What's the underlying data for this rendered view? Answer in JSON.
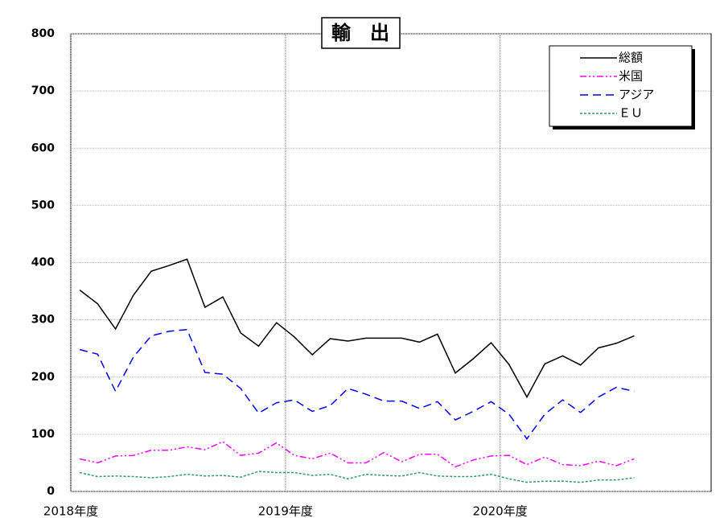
{
  "chart_data": {
    "type": "line",
    "title": "輸　出",
    "x": [
      0.5,
      1.5,
      2.5,
      3.5,
      4.5,
      5.5,
      6.5,
      7.5,
      8.5,
      9.5,
      10.5,
      11.5,
      12.5,
      13.5,
      14.5,
      15.5,
      16.5,
      17.5,
      18.5,
      19.5,
      20.5,
      21.5,
      22.5,
      23.5,
      24.5,
      25.5,
      26.5,
      27.5,
      28.5,
      29.5,
      30.5,
      31.5
    ],
    "xlim": [
      0,
      35.8
    ],
    "xticks": [
      {
        "value": 0,
        "label": "2018年度"
      },
      {
        "value": 12,
        "label": "2019年度"
      },
      {
        "value": 24,
        "label": "2020年度"
      }
    ],
    "ylim": [
      0,
      800
    ],
    "yticks": [
      0,
      100,
      200,
      300,
      400,
      500,
      600,
      700,
      800
    ],
    "grid": true,
    "legend": "top-right",
    "series": [
      {
        "name": "総額",
        "color": "#000000",
        "dash": "solid",
        "values": [
          352,
          328,
          284,
          343,
          385,
          395,
          406,
          322,
          340,
          277,
          254,
          295,
          270,
          239,
          267,
          263,
          268,
          268,
          268,
          261,
          275,
          207,
          232,
          260,
          222,
          165,
          223,
          237,
          221,
          251,
          259,
          272
        ]
      },
      {
        "name": "米国",
        "color": "#ff00ff",
        "dash": "dashdotdot",
        "values": [
          57,
          50,
          62,
          63,
          72,
          72,
          78,
          73,
          87,
          63,
          67,
          85,
          63,
          57,
          67,
          50,
          50,
          68,
          52,
          65,
          65,
          43,
          55,
          62,
          63,
          47,
          60,
          47,
          45,
          53,
          45,
          57
        ]
      },
      {
        "name": "アジア",
        "color": "#0000ff",
        "dash": "dashed",
        "values": [
          248,
          240,
          175,
          235,
          272,
          280,
          283,
          208,
          205,
          180,
          137,
          155,
          160,
          140,
          150,
          180,
          170,
          158,
          158,
          145,
          157,
          125,
          140,
          157,
          135,
          92,
          135,
          160,
          138,
          165,
          182,
          175
        ]
      },
      {
        "name": "ＥＵ",
        "color": "#339966",
        "dash": "dotted",
        "values": [
          33,
          26,
          27,
          26,
          24,
          26,
          30,
          27,
          28,
          25,
          35,
          33,
          33,
          28,
          30,
          22,
          30,
          28,
          27,
          33,
          27,
          26,
          26,
          30,
          22,
          16,
          18,
          18,
          16,
          20,
          20,
          24
        ]
      }
    ]
  }
}
